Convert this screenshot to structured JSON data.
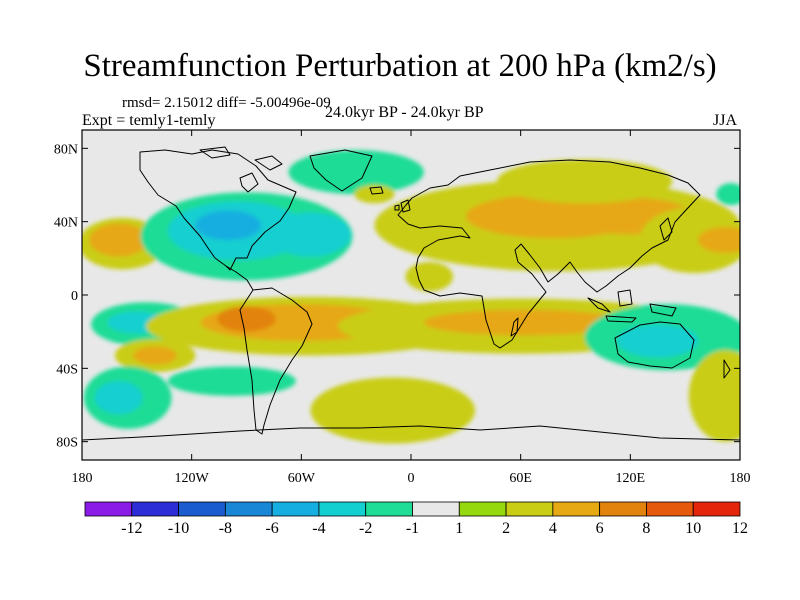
{
  "title": "Streamfunction Perturbation at 200 hPa (km2/s)",
  "stats_line": "rmsd= 2.15012 diff= -5.00496e-09",
  "experiment_label": "Expt = temly1-temly",
  "period_label": "24.0kyr BP - 24.0kyr BP",
  "season_label": "JJA",
  "map": {
    "projection": "cylindrical-equidistant",
    "lon_range": [
      -180,
      180
    ],
    "lat_range": [
      -90,
      90
    ],
    "lat_ticks": [
      {
        "value": 80,
        "label": "80N"
      },
      {
        "value": 40,
        "label": "40N"
      },
      {
        "value": 0,
        "label": "0"
      },
      {
        "value": -40,
        "label": "40S"
      },
      {
        "value": -80,
        "label": "80S"
      }
    ],
    "lon_ticks": [
      {
        "value": -180,
        "label": "180"
      },
      {
        "value": -120,
        "label": "120W"
      },
      {
        "value": -60,
        "label": "60W"
      },
      {
        "value": 0,
        "label": "0"
      },
      {
        "value": 60,
        "label": "60E"
      },
      {
        "value": 120,
        "label": "120E"
      },
      {
        "value": 180,
        "label": "180"
      }
    ],
    "background_color": "#e8e8e8",
    "anomaly_regions": [
      {
        "lon": -158,
        "lat": 28,
        "rlon": 24,
        "rlat": 14,
        "level": 2
      },
      {
        "lon": -160,
        "lat": 30,
        "rlon": 16,
        "rlat": 9,
        "level": 4
      },
      {
        "lon": -145,
        "lat": -16,
        "rlon": 30,
        "rlat": 12,
        "level": -2
      },
      {
        "lon": -150,
        "lat": -15,
        "rlon": 16,
        "rlat": 6,
        "level": -4
      },
      {
        "lon": -140,
        "lat": -33,
        "rlon": 22,
        "rlat": 9,
        "level": 2
      },
      {
        "lon": -140,
        "lat": -33,
        "rlon": 12,
        "rlat": 5,
        "level": 4
      },
      {
        "lon": -155,
        "lat": -56,
        "rlon": 24,
        "rlat": 17,
        "level": -2
      },
      {
        "lon": -160,
        "lat": -56,
        "rlon": 13,
        "rlat": 9,
        "level": -4
      },
      {
        "lon": -90,
        "lat": 32,
        "rlon": 58,
        "rlat": 24,
        "level": -2
      },
      {
        "lon": -95,
        "lat": 35,
        "rlon": 38,
        "rlat": 16,
        "level": -4
      },
      {
        "lon": -100,
        "lat": 38,
        "rlon": 18,
        "rlat": 8,
        "level": -6
      },
      {
        "lon": -55,
        "lat": 33,
        "rlon": 22,
        "rlat": 12,
        "level": -4
      },
      {
        "lon": -30,
        "lat": 67,
        "rlon": 37,
        "rlat": 12,
        "level": -2
      },
      {
        "lon": -20,
        "lat": 55,
        "rlon": 11,
        "rlat": 5,
        "level": 2
      },
      {
        "lon": 10,
        "lat": 10,
        "rlon": 13,
        "rlat": 8,
        "level": 2
      },
      {
        "lon": -55,
        "lat": -17,
        "rlon": 90,
        "rlat": 16,
        "level": 2
      },
      {
        "lon": -60,
        "lat": -15,
        "rlon": 55,
        "rlat": 10,
        "level": 4
      },
      {
        "lon": -90,
        "lat": -13,
        "rlon": 16,
        "rlat": 7,
        "level": 6
      },
      {
        "lon": -10,
        "lat": -63,
        "rlon": 45,
        "rlat": 18,
        "level": 2
      },
      {
        "lon": -98,
        "lat": -47,
        "rlon": 35,
        "rlat": 8,
        "level": -2
      },
      {
        "lon": 80,
        "lat": 38,
        "rlon": 100,
        "rlat": 25,
        "level": 2
      },
      {
        "lon": 78,
        "lat": 43,
        "rlon": 48,
        "rlat": 12,
        "level": 4
      },
      {
        "lon": 120,
        "lat": 43,
        "rlon": 35,
        "rlat": 10,
        "level": 4
      },
      {
        "lon": 155,
        "lat": 30,
        "rlon": 30,
        "rlat": 18,
        "level": 2
      },
      {
        "lon": 172,
        "lat": 30,
        "rlon": 15,
        "rlat": 7,
        "level": 4
      },
      {
        "lon": 95,
        "lat": 62,
        "rlon": 48,
        "rlat": 12,
        "level": 2
      },
      {
        "lon": 175,
        "lat": 55,
        "rlon": 8,
        "rlat": 6,
        "level": -2
      },
      {
        "lon": 60,
        "lat": -17,
        "rlon": 100,
        "rlat": 15,
        "level": 2
      },
      {
        "lon": 62,
        "lat": -15,
        "rlon": 55,
        "rlat": 7,
        "level": 4
      },
      {
        "lon": 140,
        "lat": -23,
        "rlon": 45,
        "rlat": 18,
        "level": -2
      },
      {
        "lon": 135,
        "lat": -25,
        "rlon": 22,
        "rlat": 9,
        "level": -4
      },
      {
        "lon": 172,
        "lat": -55,
        "rlon": 20,
        "rlat": 25,
        "level": 2
      }
    ]
  },
  "colorbar": {
    "boundary_labels": [
      "-12",
      "-10",
      "-8",
      "-6",
      "-4",
      "-2",
      "-1",
      "1",
      "2",
      "4",
      "6",
      "8",
      "10",
      "12"
    ],
    "colors": [
      "#8b1ce8",
      "#2d2ed6",
      "#1a5ccf",
      "#1a86d6",
      "#16aee0",
      "#13cfd0",
      "#1fdc96",
      "#e8e8e8",
      "#94d80d",
      "#c9cd14",
      "#e6a813",
      "#e2830e",
      "#e5590d",
      "#e4250c"
    ]
  }
}
